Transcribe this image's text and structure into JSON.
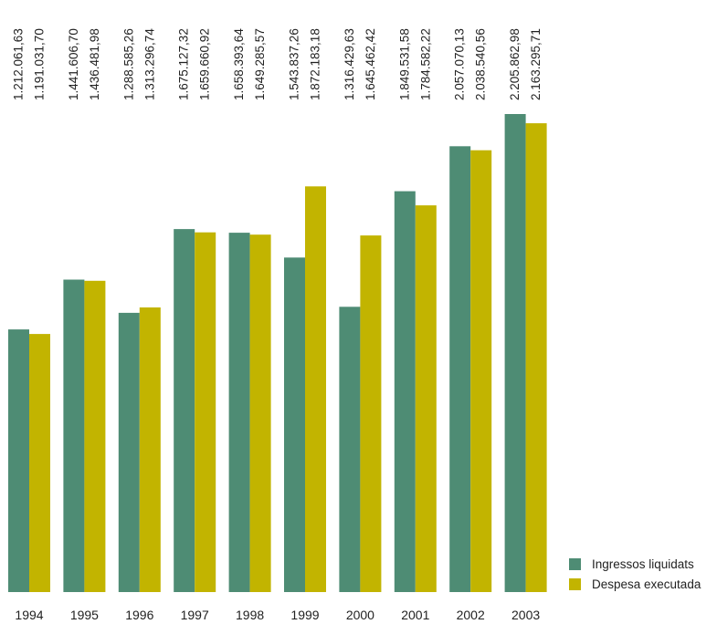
{
  "chart_data": {
    "type": "bar",
    "categories": [
      "1994",
      "1995",
      "1996",
      "1997",
      "1998",
      "1999",
      "2000",
      "2001",
      "2002",
      "2003"
    ],
    "series": [
      {
        "name": "Ingressos liquidats",
        "color": "#4e8c74",
        "values": [
          1212061.63,
          1441606.7,
          1288585.26,
          1675127.32,
          1658393.64,
          1543837.26,
          1316429.63,
          1849531.58,
          2057070.13,
          2205862.98
        ],
        "labels": [
          "1.212.061,63",
          "1.441.606,70",
          "1.288.585,26",
          "1.675.127,32",
          "1.658.393,64",
          "1.543.837,26",
          "1.316.429,63",
          "1.849.531,58",
          "2.057.070,13",
          "2.205.862,98"
        ]
      },
      {
        "name": "Despesa executada",
        "color": "#c2b400",
        "values": [
          1191031.7,
          1436481.98,
          1313296.74,
          1659660.92,
          1649285.57,
          1872183.18,
          1645462.42,
          1784582.22,
          2038540.56,
          2163295.71
        ],
        "labels": [
          "1.191.031,70",
          "1.436.481,98",
          "1.313.296,74",
          "1.659.660,92",
          "1.649.285,57",
          "1.872.183,18",
          "1.645.462,42",
          "1.784.582,22",
          "2.038.540,56",
          "2.163.295,71"
        ]
      }
    ],
    "legend_position": "bottom-right",
    "grid": false
  }
}
